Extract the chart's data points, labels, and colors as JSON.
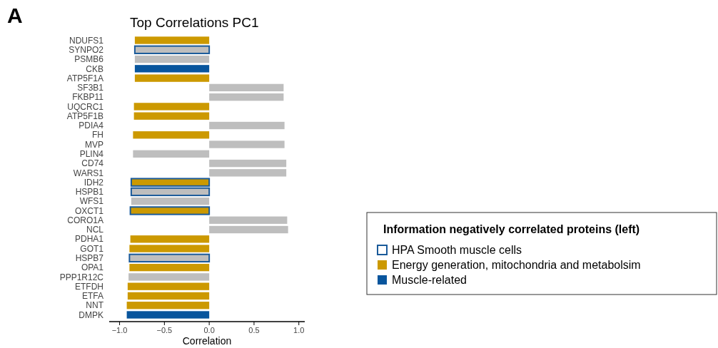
{
  "chart_data": {
    "type": "bar",
    "orientation": "horizontal",
    "title": "Top Correlations PC1",
    "xlabel": "Correlation",
    "legend_title": "Information negatively correlated proteins (left)",
    "legend": "right",
    "annotations": [
      "A"
    ],
    "categories": [
      "NDUFS1",
      "SYNPO2",
      "PSMB6",
      "CKB",
      "ATP5F1A",
      "SF3B1",
      "FKBP11",
      "UQCRC1",
      "ATP5F1B",
      "PDIA4",
      "FH",
      "MVP",
      "PLIN4",
      "CD74",
      "WARS1",
      "IDH2",
      "HSPB1",
      "WFS1",
      "OXCT1",
      "CORO1A",
      "NCL",
      "PDHA1",
      "GOT1",
      "HSPB7",
      "OPA1",
      "PPP1R12C",
      "ETFDH",
      "ETFA",
      "NNT",
      "DMPK"
    ],
    "xlim": [
      -1.1,
      1.05
    ],
    "xticks": [
      {
        "value": -1,
        "label": "−1.0"
      },
      {
        "value": -0.5,
        "label": "−0.5"
      },
      {
        "value": 0,
        "label": "0.0"
      },
      0.5,
      {
        "value": 1,
        "label": "1.0"
      }
    ],
    "series": [
      {
        "color": "#bebebe",
        "values": [
          null,
          null,
          -0.83,
          null,
          null,
          0.83,
          0.83,
          null,
          null,
          0.84,
          null,
          0.84,
          -0.85,
          0.86,
          0.86,
          null,
          null,
          -0.87,
          null,
          0.87,
          0.88,
          null,
          null,
          null,
          null,
          -0.9,
          null,
          null,
          null,
          null
        ]
      },
      {
        "name": "Energy generation, mitochondria and metabolsim",
        "color": "#cc9900",
        "values": [
          -0.83,
          null,
          null,
          null,
          -0.83,
          null,
          null,
          -0.84,
          -0.84,
          null,
          -0.85,
          null,
          null,
          null,
          null,
          null,
          null,
          null,
          null,
          null,
          null,
          -0.88,
          -0.89,
          null,
          -0.89,
          null,
          -0.91,
          -0.91,
          -0.92,
          null
        ]
      },
      {
        "name": "Muscle-related",
        "color": "#08559d",
        "values": [
          null,
          null,
          null,
          -0.83,
          null,
          null,
          null,
          null,
          null,
          null,
          null,
          null,
          null,
          null,
          null,
          null,
          null,
          null,
          null,
          null,
          null,
          null,
          null,
          null,
          null,
          null,
          null,
          null,
          null,
          -0.92
        ]
      },
      {
        "name": "HPA Smooth muscle cells",
        "color": "#1a5a9a",
        "line_style": "solid",
        "colors": [
          null,
          "#bebebe",
          null,
          null,
          null,
          null,
          null,
          null,
          null,
          null,
          null,
          null,
          null,
          null,
          null,
          "#cc9900",
          "#bebebe",
          null,
          "#cc9900",
          null,
          null,
          null,
          null,
          "#bebebe",
          null,
          null,
          null,
          null,
          null,
          null
        ],
        "values": [
          null,
          -0.83,
          null,
          null,
          null,
          null,
          null,
          null,
          null,
          null,
          null,
          null,
          null,
          null,
          null,
          -0.87,
          -0.87,
          null,
          -0.88,
          null,
          null,
          null,
          null,
          -0.89,
          null,
          null,
          null,
          null,
          null,
          null
        ]
      }
    ]
  }
}
